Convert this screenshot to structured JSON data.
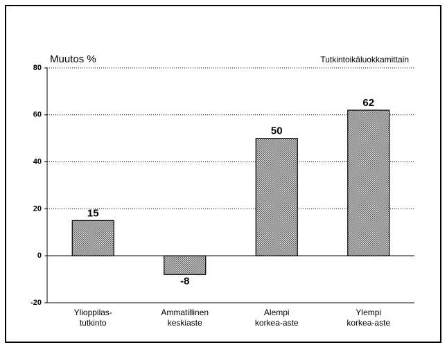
{
  "chart_data": {
    "type": "bar",
    "y_label": "Muutos %",
    "subtitle": "Tutkintoikäluokkamittain",
    "categories": [
      "Ylioppilas-\ntutkinto",
      "Ammatillinen\nkeskiaste",
      "Alempi\nkorkea-aste",
      "Ylempi\nkorkea-aste"
    ],
    "values": [
      15,
      -8,
      50,
      62
    ],
    "color": "#b8b8b8",
    "ylim": [
      -20,
      80
    ],
    "yticks": [
      -20,
      0,
      20,
      40,
      60,
      80
    ],
    "grid": true
  }
}
